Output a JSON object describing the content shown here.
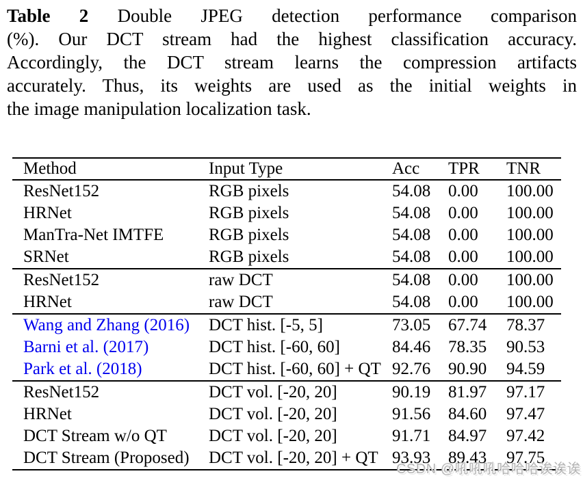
{
  "caption": {
    "label": "Table 2",
    "lines": [
      "Double JPEG detection performance comparison",
      "(%). Our DCT stream had the highest classification accuracy.",
      "Accordingly, the DCT stream learns the compression artifacts",
      "accurately. Thus, its weights are used as the initial weights in",
      "the image manipulation localization task."
    ]
  },
  "table": {
    "headers": [
      "Method",
      "Input Type",
      "Acc",
      "TPR",
      "TNR"
    ],
    "groups": [
      {
        "rows": [
          {
            "method": "ResNet152",
            "input": "RGB pixels",
            "acc": "54.08",
            "tpr": "0.00",
            "tnr": "100.00",
            "link": false
          },
          {
            "method": "HRNet",
            "input": "RGB pixels",
            "acc": "54.08",
            "tpr": "0.00",
            "tnr": "100.00",
            "link": false
          },
          {
            "method": "ManTra-Net IMTFE",
            "input": "RGB pixels",
            "acc": "54.08",
            "tpr": "0.00",
            "tnr": "100.00",
            "link": false
          },
          {
            "method": "SRNet",
            "input": "RGB pixels",
            "acc": "54.08",
            "tpr": "0.00",
            "tnr": "100.00",
            "link": false
          }
        ]
      },
      {
        "rows": [
          {
            "method": "ResNet152",
            "input": "raw DCT",
            "acc": "54.08",
            "tpr": "0.00",
            "tnr": "100.00",
            "link": false
          },
          {
            "method": "HRNet",
            "input": "raw DCT",
            "acc": "54.08",
            "tpr": "0.00",
            "tnr": "100.00",
            "link": false
          }
        ]
      },
      {
        "rows": [
          {
            "method": "Wang and Zhang (2016)",
            "input": "DCT hist. [-5, 5]",
            "acc": "73.05",
            "tpr": "67.74",
            "tnr": "78.37",
            "link": true
          },
          {
            "method": "Barni et al. (2017)",
            "input": "DCT hist. [-60, 60]",
            "acc": "84.46",
            "tpr": "78.35",
            "tnr": "90.53",
            "link": true
          },
          {
            "method": "Park et al. (2018)",
            "input": "DCT hist. [-60, 60] + QT",
            "acc": "92.76",
            "tpr": "90.90",
            "tnr": "94.59",
            "link": true
          }
        ]
      },
      {
        "rows": [
          {
            "method": "ResNet152",
            "input": "DCT vol. [-20, 20]",
            "acc": "90.19",
            "tpr": "81.97",
            "tnr": "97.17",
            "link": false
          },
          {
            "method": "HRNet",
            "input": "DCT vol. [-20, 20]",
            "acc": "91.56",
            "tpr": "84.60",
            "tnr": "97.47",
            "link": false
          },
          {
            "method": "DCT Stream w/o QT",
            "input": "DCT vol. [-20, 20]",
            "acc": "91.71",
            "tpr": "84.97",
            "tnr": "97.42",
            "link": false
          },
          {
            "method": "DCT Stream (Proposed)",
            "input": "DCT vol. [-20, 20] + QT",
            "acc": "93.93",
            "tpr": "89.43",
            "tnr": "97.75",
            "link": false
          }
        ]
      }
    ]
  },
  "watermark": "CSDN @吼吼吼哈哈哈诶诶诶",
  "colors": {
    "citation_link": "#0000ee",
    "text": "#000000",
    "watermark_gray": "#b5b5b5",
    "background": "#ffffff"
  }
}
